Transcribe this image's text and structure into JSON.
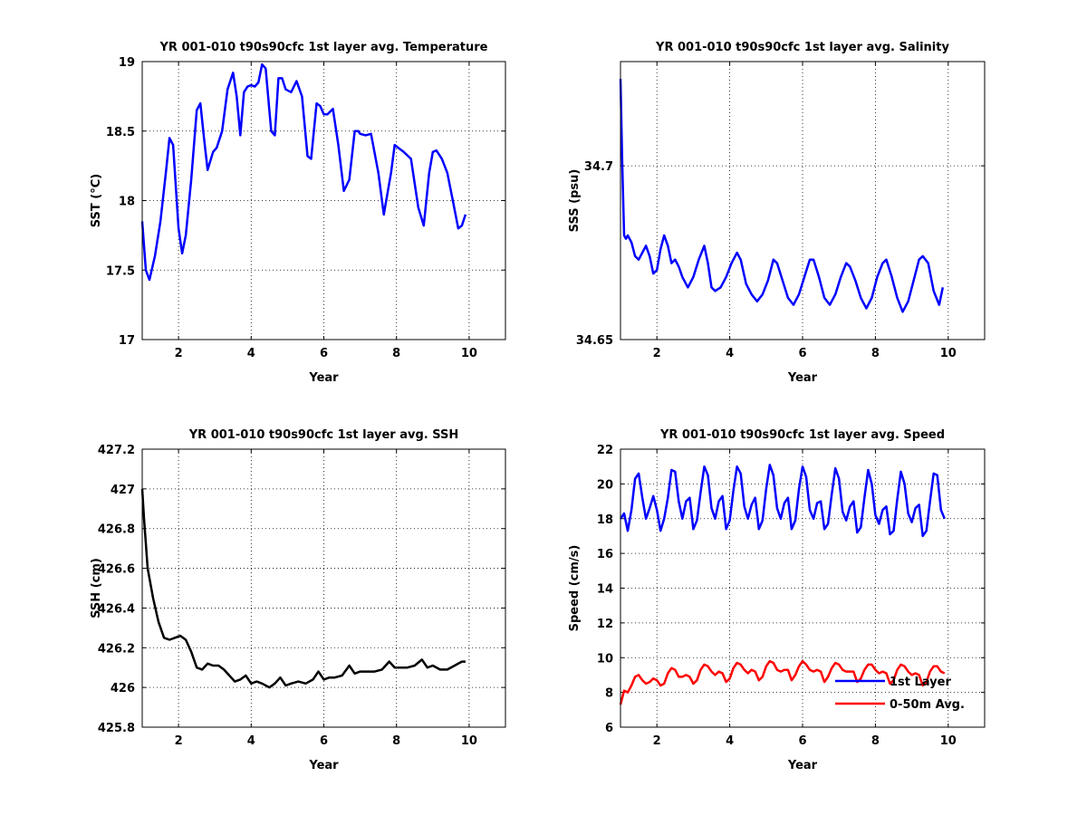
{
  "chart_data": [
    {
      "type": "line",
      "title": "YR 001-010 t90s90cfc 1st layer avg. Temperature",
      "xlabel": "Year",
      "ylabel": "SST (°C)",
      "xlim": [
        1,
        11
      ],
      "ylim": [
        17,
        19
      ],
      "xticks": [
        "2",
        "4",
        "6",
        "8",
        "10"
      ],
      "yticks": [
        "17",
        "17.5",
        "18",
        "18.5",
        "19"
      ],
      "grid": true,
      "series": [
        {
          "color": "#0000ff",
          "x": [
            1.0,
            1.1,
            1.2,
            1.35,
            1.5,
            1.65,
            1.75,
            1.85,
            2.0,
            2.1,
            2.2,
            2.35,
            2.5,
            2.6,
            2.7,
            2.8,
            2.95,
            3.05,
            3.2,
            3.35,
            3.5,
            3.6,
            3.7,
            3.8,
            3.9,
            4.0,
            4.1,
            4.2,
            4.3,
            4.4,
            4.55,
            4.65,
            4.75,
            4.85,
            4.95,
            5.1,
            5.25,
            5.4,
            5.55,
            5.65,
            5.8,
            5.9,
            6.0,
            6.1,
            6.25,
            6.4,
            6.55,
            6.7,
            6.85,
            6.95,
            7.0,
            7.15,
            7.3,
            7.5,
            7.65,
            7.85,
            7.95,
            8.05,
            8.2,
            8.4,
            8.6,
            8.75,
            8.9,
            9.0,
            9.1,
            9.25,
            9.4,
            9.55,
            9.7,
            9.8,
            9.9
          ],
          "values": [
            17.85,
            17.5,
            17.43,
            17.6,
            17.85,
            18.2,
            18.45,
            18.4,
            17.8,
            17.62,
            17.75,
            18.15,
            18.65,
            18.7,
            18.45,
            18.22,
            18.35,
            18.38,
            18.5,
            18.8,
            18.92,
            18.75,
            18.47,
            18.78,
            18.82,
            18.83,
            18.82,
            18.85,
            18.98,
            18.95,
            18.5,
            18.47,
            18.88,
            18.88,
            18.8,
            18.78,
            18.86,
            18.75,
            18.32,
            18.3,
            18.7,
            18.68,
            18.62,
            18.62,
            18.66,
            18.4,
            18.07,
            18.15,
            18.5,
            18.5,
            18.48,
            18.47,
            18.48,
            18.2,
            17.9,
            18.2,
            18.4,
            18.38,
            18.35,
            18.3,
            17.95,
            17.82,
            18.2,
            18.35,
            18.36,
            18.3,
            18.2,
            18.0,
            17.8,
            17.82,
            17.9
          ]
        }
      ]
    },
    {
      "type": "line",
      "title": "YR 001-010 t90s90cfc 1st layer avg. Salinity",
      "xlabel": "Year",
      "ylabel": "SSS (psu)",
      "xlim": [
        1,
        11
      ],
      "ylim": [
        34.65,
        34.73
      ],
      "xticks": [
        "2",
        "4",
        "6",
        "8",
        "10"
      ],
      "yticks": [
        "34.65",
        "34.7"
      ],
      "grid": true,
      "series": [
        {
          "color": "#0000ff",
          "x": [
            1.0,
            1.05,
            1.1,
            1.15,
            1.2,
            1.3,
            1.4,
            1.5,
            1.6,
            1.7,
            1.8,
            1.9,
            2.0,
            2.1,
            2.2,
            2.3,
            2.4,
            2.5,
            2.6,
            2.7,
            2.85,
            3.0,
            3.15,
            3.3,
            3.4,
            3.5,
            3.6,
            3.75,
            3.9,
            4.05,
            4.2,
            4.3,
            4.45,
            4.6,
            4.75,
            4.9,
            5.05,
            5.2,
            5.3,
            5.45,
            5.6,
            5.75,
            5.9,
            6.05,
            6.2,
            6.3,
            6.45,
            6.6,
            6.75,
            6.9,
            7.05,
            7.2,
            7.3,
            7.45,
            7.6,
            7.75,
            7.9,
            8.05,
            8.2,
            8.3,
            8.45,
            8.6,
            8.75,
            8.9,
            9.05,
            9.2,
            9.3,
            9.45,
            9.6,
            9.75,
            9.85
          ],
          "values": [
            34.725,
            34.7,
            34.68,
            34.679,
            34.68,
            34.678,
            34.674,
            34.673,
            34.675,
            34.677,
            34.674,
            34.669,
            34.67,
            34.676,
            34.68,
            34.677,
            34.672,
            34.673,
            34.671,
            34.668,
            34.665,
            34.668,
            34.673,
            34.677,
            34.672,
            34.665,
            34.664,
            34.665,
            34.668,
            34.672,
            34.675,
            34.673,
            34.666,
            34.663,
            34.661,
            34.663,
            34.667,
            34.673,
            34.672,
            34.667,
            34.662,
            34.66,
            34.663,
            34.668,
            34.673,
            34.673,
            34.668,
            34.662,
            34.66,
            34.663,
            34.668,
            34.672,
            34.671,
            34.667,
            34.662,
            34.659,
            34.662,
            34.668,
            34.672,
            34.673,
            34.668,
            34.662,
            34.658,
            34.661,
            34.667,
            34.673,
            34.674,
            34.672,
            34.664,
            34.66,
            34.665
          ]
        }
      ]
    },
    {
      "type": "line",
      "title": "YR 001-010 t90s90cfc 1st layer avg. SSH",
      "xlabel": "Year",
      "ylabel": "SSH (cm)",
      "xlim": [
        1,
        11
      ],
      "ylim": [
        425.8,
        427.2
      ],
      "xticks": [
        "2",
        "4",
        "6",
        "8",
        "10"
      ],
      "yticks": [
        "425.8",
        "426",
        "426.2",
        "426.4",
        "426.6",
        "426.8",
        "427",
        "427.2"
      ],
      "grid": true,
      "series": [
        {
          "color": "#000000",
          "x": [
            1.0,
            1.05,
            1.15,
            1.3,
            1.45,
            1.6,
            1.75,
            1.9,
            2.05,
            2.2,
            2.35,
            2.5,
            2.65,
            2.8,
            2.95,
            3.1,
            3.25,
            3.4,
            3.55,
            3.7,
            3.85,
            4.0,
            4.15,
            4.3,
            4.5,
            4.65,
            4.8,
            4.95,
            5.1,
            5.3,
            5.5,
            5.7,
            5.85,
            6.0,
            6.15,
            6.3,
            6.5,
            6.7,
            6.85,
            7.0,
            7.2,
            7.4,
            7.6,
            7.8,
            7.95,
            8.1,
            8.3,
            8.5,
            8.7,
            8.85,
            9.0,
            9.2,
            9.4,
            9.6,
            9.8,
            9.9
          ],
          "values": [
            427.0,
            426.85,
            426.6,
            426.45,
            426.33,
            426.25,
            426.24,
            426.25,
            426.26,
            426.24,
            426.18,
            426.1,
            426.09,
            426.12,
            426.11,
            426.11,
            426.09,
            426.06,
            426.03,
            426.04,
            426.06,
            426.02,
            426.03,
            426.02,
            426.0,
            426.02,
            426.05,
            426.01,
            426.02,
            426.03,
            426.02,
            426.04,
            426.08,
            426.04,
            426.05,
            426.05,
            426.06,
            426.11,
            426.07,
            426.08,
            426.08,
            426.08,
            426.09,
            426.13,
            426.1,
            426.1,
            426.1,
            426.11,
            426.14,
            426.1,
            426.11,
            426.09,
            426.09,
            426.11,
            426.13,
            426.13
          ]
        }
      ]
    },
    {
      "type": "line",
      "title": "YR 001-010 t90s90cfc 1st layer avg. Speed",
      "xlabel": "Year",
      "ylabel": "Speed (cm/s)",
      "xlim": [
        1,
        11
      ],
      "ylim": [
        6,
        22
      ],
      "xticks": [
        "2",
        "4",
        "6",
        "8",
        "10"
      ],
      "yticks": [
        "6",
        "8",
        "10",
        "12",
        "14",
        "16",
        "18",
        "20",
        "22"
      ],
      "grid": true,
      "legend": {
        "position": "bottom-right",
        "entries": [
          "1st Layer",
          "0-50m Avg."
        ]
      },
      "series": [
        {
          "name": "1st Layer",
          "color": "#0000ff",
          "x": [
            1.0,
            1.1,
            1.2,
            1.3,
            1.4,
            1.5,
            1.6,
            1.7,
            1.8,
            1.9,
            2.0,
            2.1,
            2.2,
            2.3,
            2.4,
            2.5,
            2.6,
            2.7,
            2.8,
            2.9,
            3.0,
            3.1,
            3.2,
            3.3,
            3.4,
            3.5,
            3.6,
            3.7,
            3.8,
            3.9,
            4.0,
            4.1,
            4.2,
            4.3,
            4.4,
            4.5,
            4.6,
            4.7,
            4.8,
            4.9,
            5.0,
            5.1,
            5.2,
            5.3,
            5.4,
            5.5,
            5.6,
            5.7,
            5.8,
            5.9,
            6.0,
            6.1,
            6.2,
            6.3,
            6.4,
            6.5,
            6.6,
            6.7,
            6.8,
            6.9,
            7.0,
            7.1,
            7.2,
            7.3,
            7.4,
            7.5,
            7.6,
            7.7,
            7.8,
            7.9,
            8.0,
            8.1,
            8.2,
            8.3,
            8.4,
            8.5,
            8.6,
            8.7,
            8.8,
            8.9,
            9.0,
            9.1,
            9.2,
            9.3,
            9.4,
            9.5,
            9.6,
            9.7,
            9.8,
            9.9
          ],
          "values": [
            18.0,
            18.3,
            17.3,
            18.5,
            20.3,
            20.6,
            19.2,
            18.0,
            18.6,
            19.3,
            18.5,
            17.3,
            18.0,
            19.2,
            20.8,
            20.7,
            19.0,
            18.0,
            19.0,
            19.2,
            17.4,
            17.9,
            19.5,
            21.0,
            20.5,
            18.6,
            18.0,
            19.0,
            19.3,
            17.4,
            17.9,
            19.6,
            21.0,
            20.6,
            18.7,
            18.0,
            18.8,
            19.2,
            17.4,
            17.9,
            19.7,
            21.1,
            20.5,
            18.6,
            18.0,
            18.9,
            19.2,
            17.4,
            17.9,
            19.7,
            21.0,
            20.4,
            18.5,
            18.0,
            18.9,
            19.0,
            17.4,
            17.7,
            19.4,
            20.9,
            20.3,
            18.4,
            17.9,
            18.7,
            19.0,
            17.2,
            17.5,
            19.2,
            20.8,
            20.0,
            18.2,
            17.7,
            18.5,
            18.7,
            17.1,
            17.3,
            19.1,
            20.7,
            20.0,
            18.3,
            17.8,
            18.6,
            18.8,
            17.0,
            17.3,
            19.0,
            20.6,
            20.5,
            18.5,
            18.0
          ]
        },
        {
          "name": "0-50m Avg.",
          "color": "#ff0000",
          "x": [
            1.0,
            1.1,
            1.2,
            1.3,
            1.4,
            1.5,
            1.6,
            1.7,
            1.8,
            1.9,
            2.0,
            2.1,
            2.2,
            2.3,
            2.4,
            2.5,
            2.6,
            2.7,
            2.8,
            2.9,
            3.0,
            3.1,
            3.2,
            3.3,
            3.4,
            3.5,
            3.6,
            3.7,
            3.8,
            3.9,
            4.0,
            4.1,
            4.2,
            4.3,
            4.4,
            4.5,
            4.6,
            4.7,
            4.8,
            4.9,
            5.0,
            5.1,
            5.2,
            5.3,
            5.4,
            5.5,
            5.6,
            5.7,
            5.8,
            5.9,
            6.0,
            6.1,
            6.2,
            6.3,
            6.4,
            6.5,
            6.6,
            6.7,
            6.8,
            6.9,
            7.0,
            7.1,
            7.2,
            7.3,
            7.4,
            7.5,
            7.6,
            7.7,
            7.8,
            7.9,
            8.0,
            8.1,
            8.2,
            8.3,
            8.4,
            8.5,
            8.6,
            8.7,
            8.8,
            8.9,
            9.0,
            9.1,
            9.2,
            9.3,
            9.4,
            9.5,
            9.6,
            9.7,
            9.8,
            9.9
          ],
          "values": [
            7.3,
            8.1,
            8.0,
            8.4,
            8.9,
            9.0,
            8.7,
            8.5,
            8.6,
            8.8,
            8.7,
            8.4,
            8.5,
            9.1,
            9.4,
            9.3,
            8.9,
            8.9,
            9.0,
            8.9,
            8.5,
            8.7,
            9.3,
            9.6,
            9.5,
            9.2,
            9.0,
            9.2,
            9.1,
            8.6,
            8.8,
            9.4,
            9.7,
            9.6,
            9.3,
            9.1,
            9.3,
            9.2,
            8.7,
            8.9,
            9.5,
            9.8,
            9.7,
            9.3,
            9.2,
            9.3,
            9.3,
            8.7,
            9.0,
            9.5,
            9.8,
            9.6,
            9.3,
            9.2,
            9.3,
            9.2,
            8.6,
            8.9,
            9.4,
            9.7,
            9.6,
            9.3,
            9.2,
            9.2,
            9.2,
            8.6,
            8.8,
            9.3,
            9.6,
            9.6,
            9.3,
            9.1,
            9.2,
            9.1,
            8.5,
            8.7,
            9.3,
            9.6,
            9.5,
            9.2,
            9.0,
            9.1,
            9.0,
            8.4,
            8.6,
            9.2,
            9.5,
            9.5,
            9.2,
            9.1
          ]
        }
      ]
    }
  ]
}
